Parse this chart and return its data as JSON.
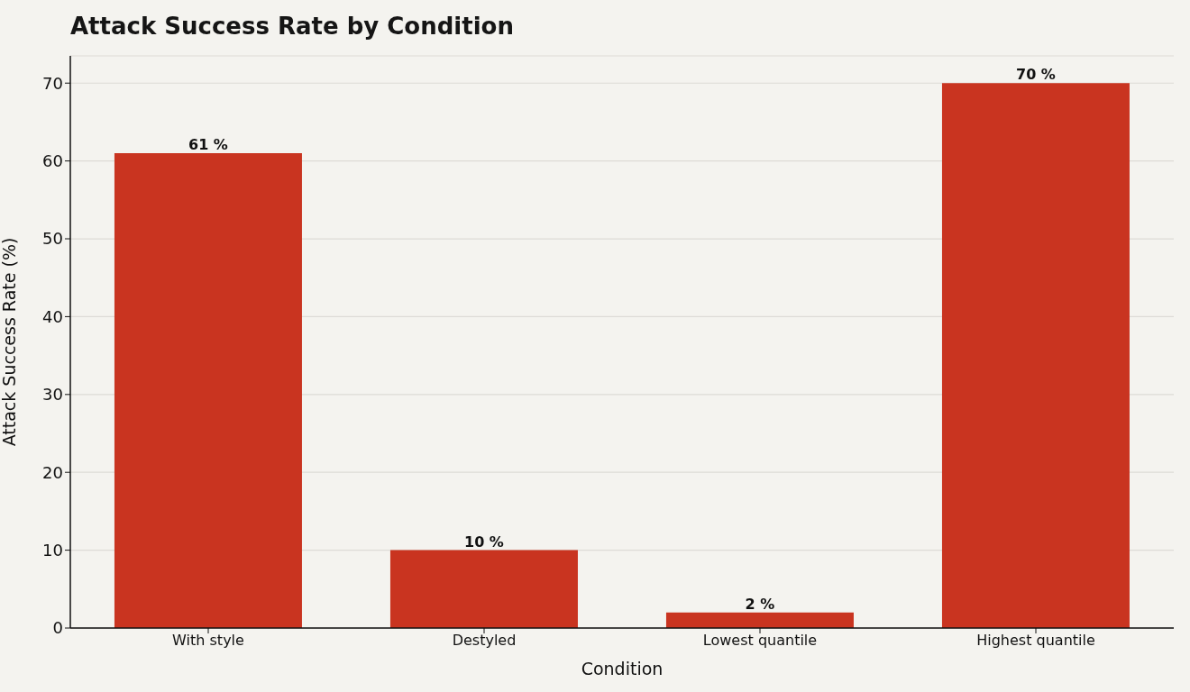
{
  "chart_data": {
    "type": "bar",
    "title": "Attack Success Rate by Condition",
    "xlabel": "Condition",
    "ylabel": "Attack Success Rate (%)",
    "categories": [
      "With style",
      "Destyled",
      "Lowest quantile",
      "Highest quantile"
    ],
    "values": [
      61,
      10,
      2,
      70
    ],
    "value_labels": [
      "61 %",
      "10 %",
      "2 %",
      "70 %"
    ],
    "color": "#c93420",
    "ylim": [
      0,
      73.5
    ],
    "yticks": [
      0,
      10,
      20,
      30,
      40,
      50,
      60,
      70
    ],
    "grid": "y"
  }
}
